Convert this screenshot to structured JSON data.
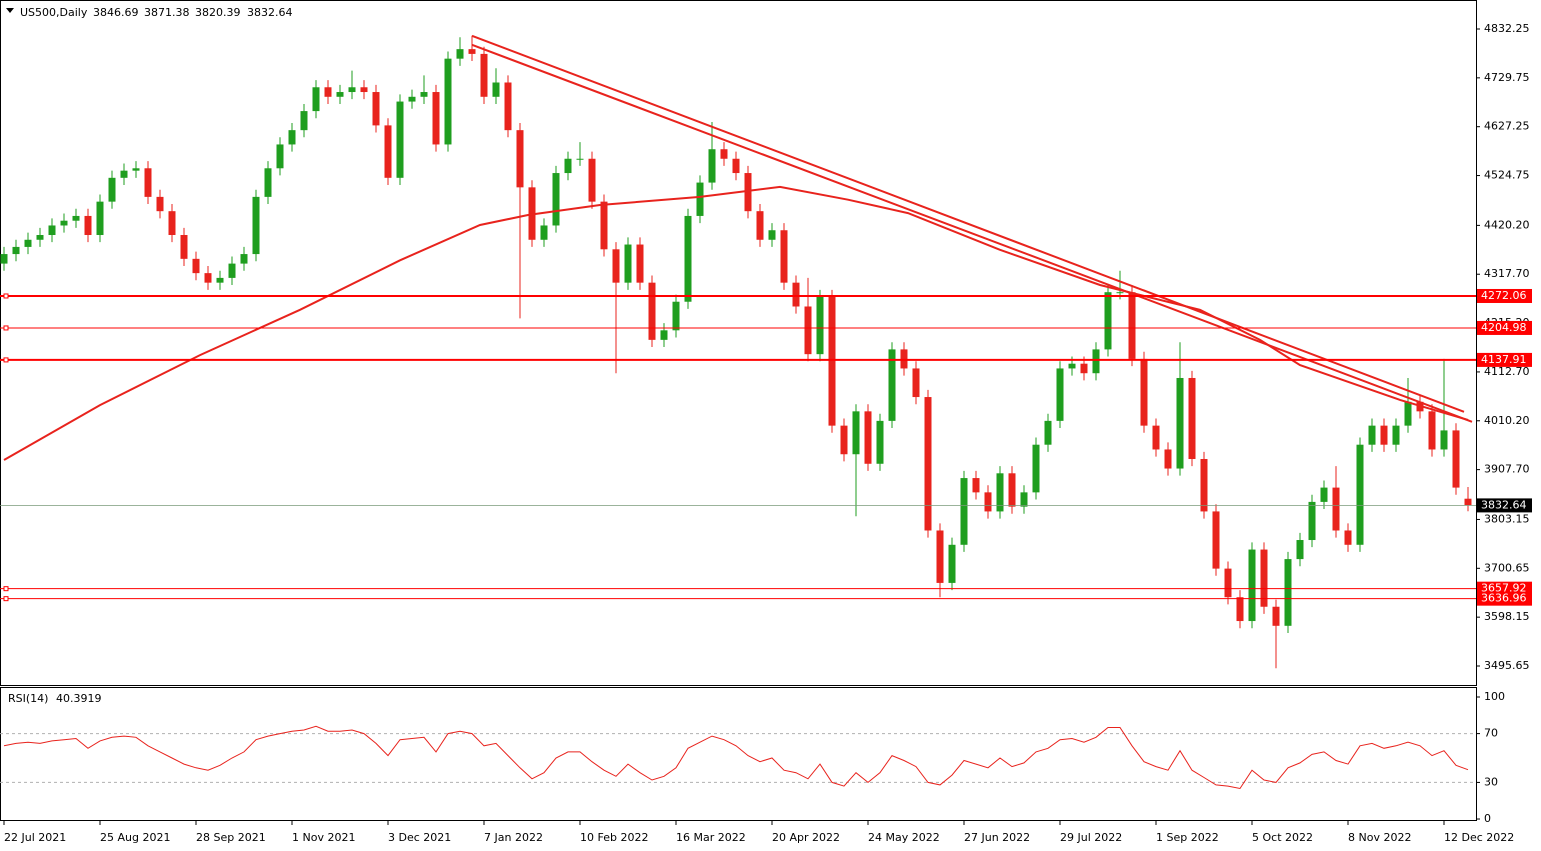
{
  "chart_data": [
    {
      "type": "candlestick",
      "title": "US500,Daily",
      "x": [
        0,
        3,
        6,
        9,
        12,
        15,
        18,
        21,
        24,
        27,
        30,
        33,
        36,
        39,
        42,
        45,
        48,
        51,
        54,
        57,
        60,
        63,
        66,
        69,
        72,
        75,
        78,
        81,
        84,
        87,
        90,
        93,
        96,
        99,
        102,
        105,
        108,
        111,
        114,
        117,
        120,
        123,
        126,
        129,
        132,
        135,
        138,
        141,
        144,
        147,
        150,
        153,
        156,
        159,
        162,
        165,
        168,
        171,
        174,
        177,
        180,
        183,
        186,
        189,
        192,
        195,
        198,
        201,
        204,
        207,
        210,
        213,
        216,
        219,
        222,
        225,
        228,
        231,
        234,
        237,
        240,
        243,
        246,
        249,
        252,
        255,
        258,
        261,
        264,
        267,
        270,
        273,
        276,
        279,
        282,
        285,
        288,
        291,
        294,
        297,
        300,
        303,
        306,
        309,
        312,
        315,
        318,
        321,
        324,
        327,
        330,
        333,
        336,
        339,
        342,
        345,
        348,
        351,
        354,
        357,
        360,
        363,
        366
      ],
      "open": [
        4340,
        4360,
        4375,
        4390,
        4400,
        4420,
        4430,
        4440,
        4400,
        4470,
        4520,
        4535,
        4540,
        4480,
        4450,
        4400,
        4350,
        4320,
        4300,
        4310,
        4340,
        4360,
        4480,
        4540,
        4590,
        4620,
        4660,
        4710,
        4690,
        4700,
        4710,
        4700,
        4630,
        4520,
        4680,
        4690,
        4700,
        4590,
        4770,
        4790,
        4780,
        4690,
        4720,
        4620,
        4500,
        4390,
        4420,
        4530,
        4560,
        4560,
        4470,
        4370,
        4300,
        4380,
        4300,
        4180,
        4200,
        4260,
        4440,
        4510,
        4580,
        4560,
        4530,
        4450,
        4390,
        4410,
        4300,
        4250,
        4150,
        4270,
        4000,
        3940,
        4030,
        3920,
        4010,
        4160,
        4120,
        4060,
        3780,
        3670,
        3750,
        3890,
        3860,
        3820,
        3900,
        3830,
        3860,
        3960,
        4010,
        4120,
        4130,
        4110,
        4160,
        4280,
        4280,
        4140,
        4000,
        3950,
        3910,
        4100,
        3930,
        3820,
        3700,
        3640,
        3590,
        3740,
        3620,
        3580,
        3720,
        3760,
        3840,
        3870,
        3780,
        3750,
        3960,
        4000,
        3960,
        4000,
        4050,
        4030,
        3950,
        3990,
        3846.69
      ],
      "high": [
        4375,
        4390,
        4405,
        4415,
        4435,
        4445,
        4455,
        4455,
        4485,
        4535,
        4550,
        4555,
        4555,
        4495,
        4465,
        4415,
        4365,
        4335,
        4325,
        4355,
        4375,
        4495,
        4555,
        4605,
        4635,
        4675,
        4725,
        4725,
        4715,
        4745,
        4725,
        4715,
        4645,
        4695,
        4705,
        4735,
        4715,
        4785,
        4815,
        4818,
        4795,
        4750,
        4735,
        4635,
        4515,
        4435,
        4545,
        4575,
        4595,
        4575,
        4485,
        4385,
        4395,
        4395,
        4315,
        4215,
        4275,
        4455,
        4525,
        4637,
        4595,
        4575,
        4545,
        4465,
        4425,
        4425,
        4315,
        4310,
        4285,
        4285,
        4015,
        4045,
        4045,
        4025,
        4175,
        4175,
        4135,
        4075,
        3795,
        3765,
        3905,
        3905,
        3875,
        3915,
        3915,
        3875,
        3975,
        4025,
        4135,
        4145,
        4145,
        4175,
        4295,
        4325,
        4295,
        4155,
        4015,
        3965,
        4175,
        4115,
        3945,
        3835,
        3715,
        3655,
        3755,
        3755,
        3635,
        3735,
        3775,
        3855,
        3885,
        3915,
        3795,
        3975,
        4015,
        4015,
        4015,
        4100,
        4065,
        4045,
        4140,
        4005,
        3871.38
      ],
      "low": [
        4325,
        4345,
        4360,
        4375,
        4385,
        4405,
        4415,
        4385,
        4385,
        4455,
        4505,
        4520,
        4465,
        4435,
        4385,
        4335,
        4305,
        4285,
        4285,
        4295,
        4325,
        4345,
        4465,
        4525,
        4575,
        4605,
        4645,
        4675,
        4675,
        4685,
        4685,
        4615,
        4505,
        4505,
        4665,
        4675,
        4575,
        4575,
        4755,
        4765,
        4675,
        4675,
        4605,
        4225,
        4375,
        4375,
        4405,
        4515,
        4545,
        4455,
        4355,
        4110,
        4285,
        4285,
        4165,
        4165,
        4185,
        4245,
        4425,
        4495,
        4545,
        4515,
        4435,
        4375,
        4375,
        4285,
        4235,
        4135,
        4135,
        3985,
        3925,
        3810,
        3905,
        3905,
        3995,
        4105,
        4045,
        3765,
        3640,
        3655,
        3735,
        3845,
        3805,
        3805,
        3815,
        3815,
        3845,
        3945,
        3995,
        4105,
        4095,
        4095,
        4145,
        4265,
        4125,
        3985,
        3935,
        3895,
        3895,
        3915,
        3805,
        3685,
        3625,
        3575,
        3575,
        3605,
        3491,
        3565,
        3705,
        3745,
        3825,
        3765,
        3735,
        3735,
        3945,
        3945,
        3945,
        3985,
        4015,
        3935,
        3935,
        3855,
        3820.39
      ],
      "close": [
        4360,
        4375,
        4390,
        4400,
        4420,
        4430,
        4440,
        4400,
        4470,
        4520,
        4535,
        4540,
        4480,
        4450,
        4400,
        4350,
        4320,
        4300,
        4310,
        4340,
        4360,
        4480,
        4540,
        4590,
        4620,
        4660,
        4710,
        4690,
        4700,
        4710,
        4700,
        4630,
        4520,
        4680,
        4690,
        4700,
        4590,
        4770,
        4790,
        4780,
        4690,
        4720,
        4620,
        4500,
        4390,
        4420,
        4530,
        4560,
        4560,
        4470,
        4370,
        4300,
        4380,
        4300,
        4180,
        4200,
        4260,
        4440,
        4510,
        4580,
        4560,
        4530,
        4450,
        4390,
        4410,
        4300,
        4250,
        4150,
        4270,
        4000,
        3940,
        4030,
        3920,
        4010,
        4160,
        4120,
        4060,
        3780,
        3670,
        3750,
        3890,
        3860,
        3820,
        3900,
        3830,
        3860,
        3960,
        4010,
        4120,
        4130,
        4110,
        4160,
        4280,
        4280,
        4140,
        4000,
        3950,
        3910,
        4100,
        3930,
        3820,
        3700,
        3640,
        3590,
        3740,
        3620,
        3580,
        3720,
        3760,
        3840,
        3870,
        3780,
        3750,
        3960,
        4000,
        3960,
        4000,
        4050,
        4030,
        3950,
        3990,
        3870,
        3832.64
      ],
      "up_color": "#1f9e1f",
      "down_color": "#e8231d",
      "moving_average": {
        "color": "#e8231d",
        "x": [
          0,
          24,
          49,
          74,
          99,
          119,
          131,
          149,
          174,
          194,
          211,
          226,
          249,
          274,
          299,
          314,
          324,
          349,
          366
        ],
        "values": [
          3928,
          4043,
          4148,
          4243,
          4347,
          4421,
          4442,
          4463,
          4480,
          4501,
          4474,
          4446,
          4369,
          4295,
          4243,
          4180,
          4127,
          4054,
          4012
        ]
      },
      "trendlines": [
        {
          "color": "#e8231d",
          "x": [
            117,
            365
          ],
          "values": [
            4818,
            4029
          ]
        },
        {
          "color": "#e8231d",
          "x": [
            117,
            367
          ],
          "values": [
            4799,
            4008
          ]
        }
      ],
      "levels": [
        {
          "value": 4272.06,
          "color": "#ff0000",
          "width": 2
        },
        {
          "value": 4204.98,
          "color": "#ff0000",
          "width": 1
        },
        {
          "value": 4137.91,
          "color": "#ff0000",
          "width": 2
        },
        {
          "value": 3657.92,
          "color": "#ff0000",
          "width": 1
        },
        {
          "value": 3636.96,
          "color": "#ff0000",
          "width": 1
        }
      ],
      "last_price_color": "#000000",
      "xlim": [
        -1,
        368
      ],
      "ylim": [
        3455.8,
        4893.1
      ],
      "yticks": [
        4832.25,
        4729.75,
        4627.25,
        4524.75,
        {
          "value": 4420.2,
          "label": "4420.20"
        },
        {
          "value": 4317.7,
          "label": "4317.70"
        },
        {
          "value": 4215.2,
          "label": "4215.20"
        },
        {
          "value": 4112.7,
          "label": "4112.70"
        },
        {
          "value": 4010.2,
          "label": "4010.20"
        },
        {
          "value": 3907.7,
          "label": "3907.70"
        },
        3803.15,
        3700.65,
        3598.15,
        3495.65
      ]
    },
    {
      "type": "line",
      "title": "RSI(14)",
      "x": [
        0,
        3,
        6,
        9,
        12,
        15,
        18,
        21,
        24,
        27,
        30,
        33,
        36,
        39,
        42,
        45,
        48,
        51,
        54,
        57,
        60,
        63,
        66,
        69,
        72,
        75,
        78,
        81,
        84,
        87,
        90,
        93,
        96,
        99,
        102,
        105,
        108,
        111,
        114,
        117,
        120,
        123,
        126,
        129,
        132,
        135,
        138,
        141,
        144,
        147,
        150,
        153,
        156,
        159,
        162,
        165,
        168,
        171,
        174,
        177,
        180,
        183,
        186,
        189,
        192,
        195,
        198,
        201,
        204,
        207,
        210,
        213,
        216,
        219,
        222,
        225,
        228,
        231,
        234,
        237,
        240,
        243,
        246,
        249,
        252,
        255,
        258,
        261,
        264,
        267,
        270,
        273,
        276,
        279,
        282,
        285,
        288,
        291,
        294,
        297,
        300,
        303,
        306,
        309,
        312,
        315,
        318,
        321,
        324,
        327,
        330,
        333,
        336,
        339,
        342,
        345,
        348,
        351,
        354,
        357,
        360,
        363,
        366
      ],
      "series": [
        {
          "color": "#e8231d",
          "values": [
            60,
            62,
            63,
            62,
            64,
            65,
            66,
            58,
            64,
            67,
            68,
            67,
            60,
            55,
            50,
            45,
            42,
            40,
            44,
            50,
            55,
            65,
            68,
            70,
            72,
            73,
            76,
            72,
            72,
            73,
            70,
            62,
            52,
            65,
            66,
            67,
            55,
            70,
            72,
            70,
            60,
            62,
            52,
            42,
            33,
            38,
            50,
            55,
            55,
            47,
            40,
            35,
            45,
            38,
            32,
            35,
            42,
            58,
            63,
            68,
            65,
            60,
            52,
            47,
            50,
            40,
            38,
            33,
            45,
            30,
            27,
            38,
            30,
            38,
            52,
            48,
            43,
            30,
            28,
            36,
            48,
            45,
            42,
            50,
            43,
            46,
            55,
            58,
            65,
            66,
            63,
            67,
            75,
            75,
            60,
            47,
            43,
            40,
            56,
            40,
            34,
            28,
            27,
            25,
            40,
            32,
            30,
            42,
            46,
            53,
            55,
            48,
            45,
            60,
            62,
            58,
            60,
            63,
            60,
            52,
            56,
            44,
            40.3919
          ]
        }
      ],
      "levels": [
        70,
        30
      ],
      "xlim": [
        -1,
        368
      ],
      "ylim": [
        -0.8,
        108.2
      ],
      "yticks": [
        100,
        70,
        30,
        0
      ],
      "xticks": [
        {
          "value": 0,
          "label": "22 Jul 2021"
        },
        {
          "value": 24,
          "label": "25 Aug 2021"
        },
        {
          "value": 48,
          "label": "28 Sep 2021"
        },
        {
          "value": 72,
          "label": "1 Nov 2021"
        },
        {
          "value": 96,
          "label": "3 Dec 2021"
        },
        {
          "value": 120,
          "label": "7 Jan 2022"
        },
        {
          "value": 144,
          "label": "10 Feb 2022"
        },
        {
          "value": 168,
          "label": "16 Mar 2022"
        },
        {
          "value": 192,
          "label": "20 Apr 2022"
        },
        {
          "value": 216,
          "label": "24 May 2022"
        },
        {
          "value": 240,
          "label": "27 Jun 2022"
        },
        {
          "value": 264,
          "label": "29 Jul 2022"
        },
        {
          "value": 288,
          "label": "1 Sep 2022"
        },
        {
          "value": 312,
          "label": "5 Oct 2022"
        },
        {
          "value": 336,
          "label": "8 Nov 2022"
        },
        {
          "value": 360,
          "label": "12 Dec 2022"
        }
      ]
    }
  ]
}
